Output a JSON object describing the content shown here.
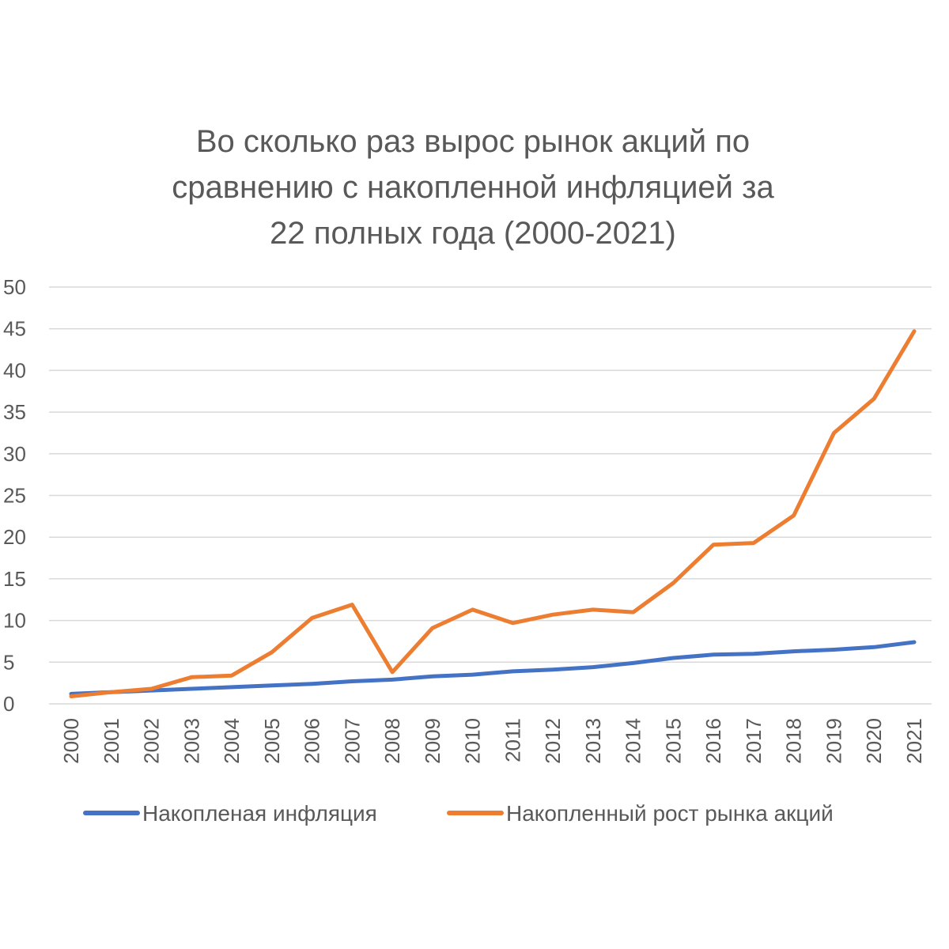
{
  "chart_data": {
    "type": "line",
    "title_lines": [
      "Во сколько раз вырос рынок акций по",
      "сравнению с накопленной инфляцией за",
      "22 полных года (2000-2021)"
    ],
    "xlabel": "",
    "ylabel": "",
    "ylim": [
      0,
      50
    ],
    "yticks": [
      "0",
      "5",
      "10",
      "15",
      "20",
      "25",
      "30",
      "35",
      "40",
      "45",
      "50"
    ],
    "categories": [
      "2000",
      "2001",
      "2002",
      "2003",
      "2004",
      "2005",
      "2006",
      "2007",
      "2008",
      "2009",
      "2010",
      "2011",
      "2012",
      "2013",
      "2014",
      "2015",
      "2016",
      "2017",
      "2018",
      "2019",
      "2020",
      "2021"
    ],
    "grid": true,
    "legend_position": "bottom",
    "series": [
      {
        "name": "Накопленая инфляция",
        "color": "#4472c4",
        "values": [
          1.2,
          1.4,
          1.6,
          1.8,
          2.0,
          2.2,
          2.4,
          2.7,
          2.9,
          3.3,
          3.5,
          3.9,
          4.1,
          4.4,
          4.9,
          5.5,
          5.9,
          6.0,
          6.3,
          6.5,
          6.8,
          7.4
        ]
      },
      {
        "name": "Накопленный рост рынка акций",
        "color": "#ed7d31",
        "values": [
          0.9,
          1.4,
          1.8,
          3.2,
          3.4,
          6.2,
          10.3,
          11.9,
          3.8,
          9.1,
          11.3,
          9.7,
          10.7,
          11.3,
          11.0,
          14.5,
          19.1,
          19.3,
          22.6,
          32.5,
          36.6,
          44.7
        ]
      }
    ]
  }
}
